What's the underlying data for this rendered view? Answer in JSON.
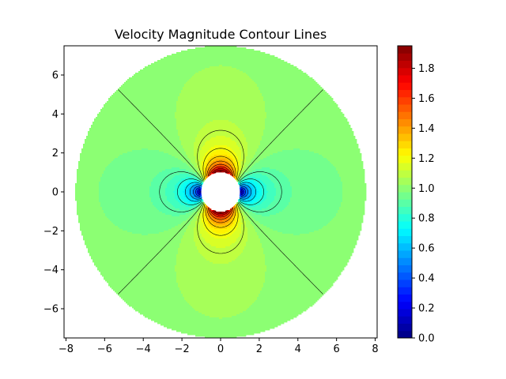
{
  "chart_data": {
    "type": "contourf",
    "title": "Velocity Magnitude Contour Lines",
    "xlabel": "",
    "ylabel": "",
    "xlim": [
      -8.1,
      8.1
    ],
    "ylim": [
      -7.5,
      7.5
    ],
    "xticks": [
      -8,
      -6,
      -4,
      -2,
      0,
      2,
      4,
      6,
      8
    ],
    "xtick_labels": [
      "−8",
      "−6",
      "−4",
      "−2",
      "0",
      "2",
      "4",
      "6",
      "8"
    ],
    "yticks": [
      -6,
      -4,
      -2,
      0,
      2,
      4,
      6
    ],
    "ytick_labels": [
      "−6",
      "−4",
      "−2",
      "0",
      "2",
      "4",
      "6"
    ],
    "cylinder_radius": 1.0,
    "outer_radius": 7.5,
    "free_stream_velocity": 1.0,
    "field": "|U| for potential flow past a circular cylinder",
    "colormap": "jet",
    "colorbar": {
      "vmin": 0.0,
      "vmax": 1.95,
      "ticks": [
        0.0,
        0.2,
        0.4,
        0.6,
        0.8,
        1.0,
        1.2,
        1.4,
        1.6,
        1.8
      ],
      "tick_labels": [
        "0.0",
        "0.2",
        "0.4",
        "0.6",
        "0.8",
        "1.0",
        "1.2",
        "1.4",
        "1.6",
        "1.8"
      ],
      "levels": 40
    },
    "contour_levels": [
      0.1,
      0.2,
      0.3,
      0.4,
      0.5,
      0.6,
      0.7,
      0.8,
      0.9,
      1.0,
      1.1,
      1.2,
      1.3,
      1.4,
      1.5,
      1.6,
      1.7,
      1.8,
      1.9
    ]
  }
}
